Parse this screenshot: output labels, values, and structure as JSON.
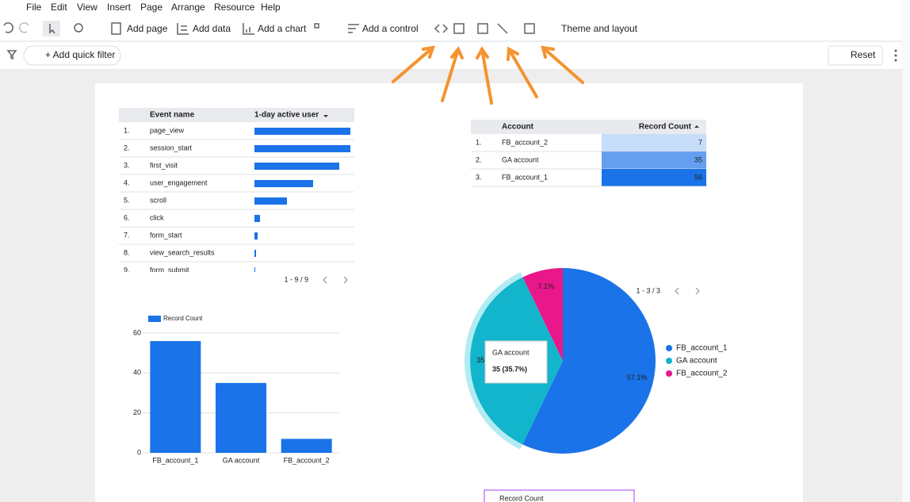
{
  "menu": [
    "File",
    "Edit",
    "View",
    "Insert",
    "Page",
    "Arrange",
    "Resource",
    "Help"
  ],
  "toolbar": {
    "add_page": "Add page",
    "add_data": "Add data",
    "add_chart": "Add a chart",
    "add_control": "Add a control",
    "theme": "Theme and layout"
  },
  "filter_bar": {
    "add_quick_filter": "+ Add quick filter",
    "reset": "Reset"
  },
  "event_table": {
    "headers": [
      "Event name",
      "1-day active user"
    ],
    "rows": [
      {
        "rank": "1.",
        "event": "page_view",
        "active_users": 121
      },
      {
        "rank": "2.",
        "event": "session_start",
        "active_users": 121
      },
      {
        "rank": "3.",
        "event": "first_visit",
        "active_users": 107
      },
      {
        "rank": "4.",
        "event": "user_engagement",
        "active_users": 74
      },
      {
        "rank": "5.",
        "event": "scroll",
        "active_users": 41
      },
      {
        "rank": "6.",
        "event": "click",
        "active_users": 7
      },
      {
        "rank": "7.",
        "event": "form_start",
        "active_users": 4
      },
      {
        "rank": "8.",
        "event": "view_search_results",
        "active_users": 2
      },
      {
        "rank": "9.",
        "event": "form_submit",
        "active_users": 1
      }
    ],
    "pagination": "1 - 9 / 9"
  },
  "account_table": {
    "headers": [
      "Account",
      "Record Count"
    ],
    "rows": [
      {
        "rank": "1.",
        "account": "FB_account_2",
        "record_count": 7
      },
      {
        "rank": "2.",
        "account": "GA account",
        "record_count": 35
      },
      {
        "rank": "3.",
        "account": "FB_account_1",
        "record_count": 56
      }
    ]
  },
  "chart_data": [
    {
      "type": "bar",
      "categories": [
        "FB_account_1",
        "GA account",
        "FB_account_2"
      ],
      "series": [
        {
          "name": "Record Count",
          "color": "#1a73e8",
          "values": [
            56,
            35,
            7
          ]
        }
      ],
      "ylim": [
        0,
        60
      ],
      "yticks": [
        0,
        20,
        40,
        60
      ],
      "grid": true
    },
    {
      "type": "pie",
      "categories": [
        "FB_account_1",
        "GA account",
        "FB_account_2"
      ],
      "values": [
        57.1,
        35.7,
        7.1
      ],
      "value_labels": [
        "57.1%",
        "35.7%",
        "7.1%"
      ],
      "colors": [
        "#1a73e8",
        "#12b5cb",
        "#e8178a"
      ],
      "legend": "right",
      "pagination": "1 - 3 / 3",
      "tooltip": {
        "title": "GA account",
        "text": "35 (35.7%)"
      }
    }
  ],
  "bottom_chart_title": "Record Count"
}
